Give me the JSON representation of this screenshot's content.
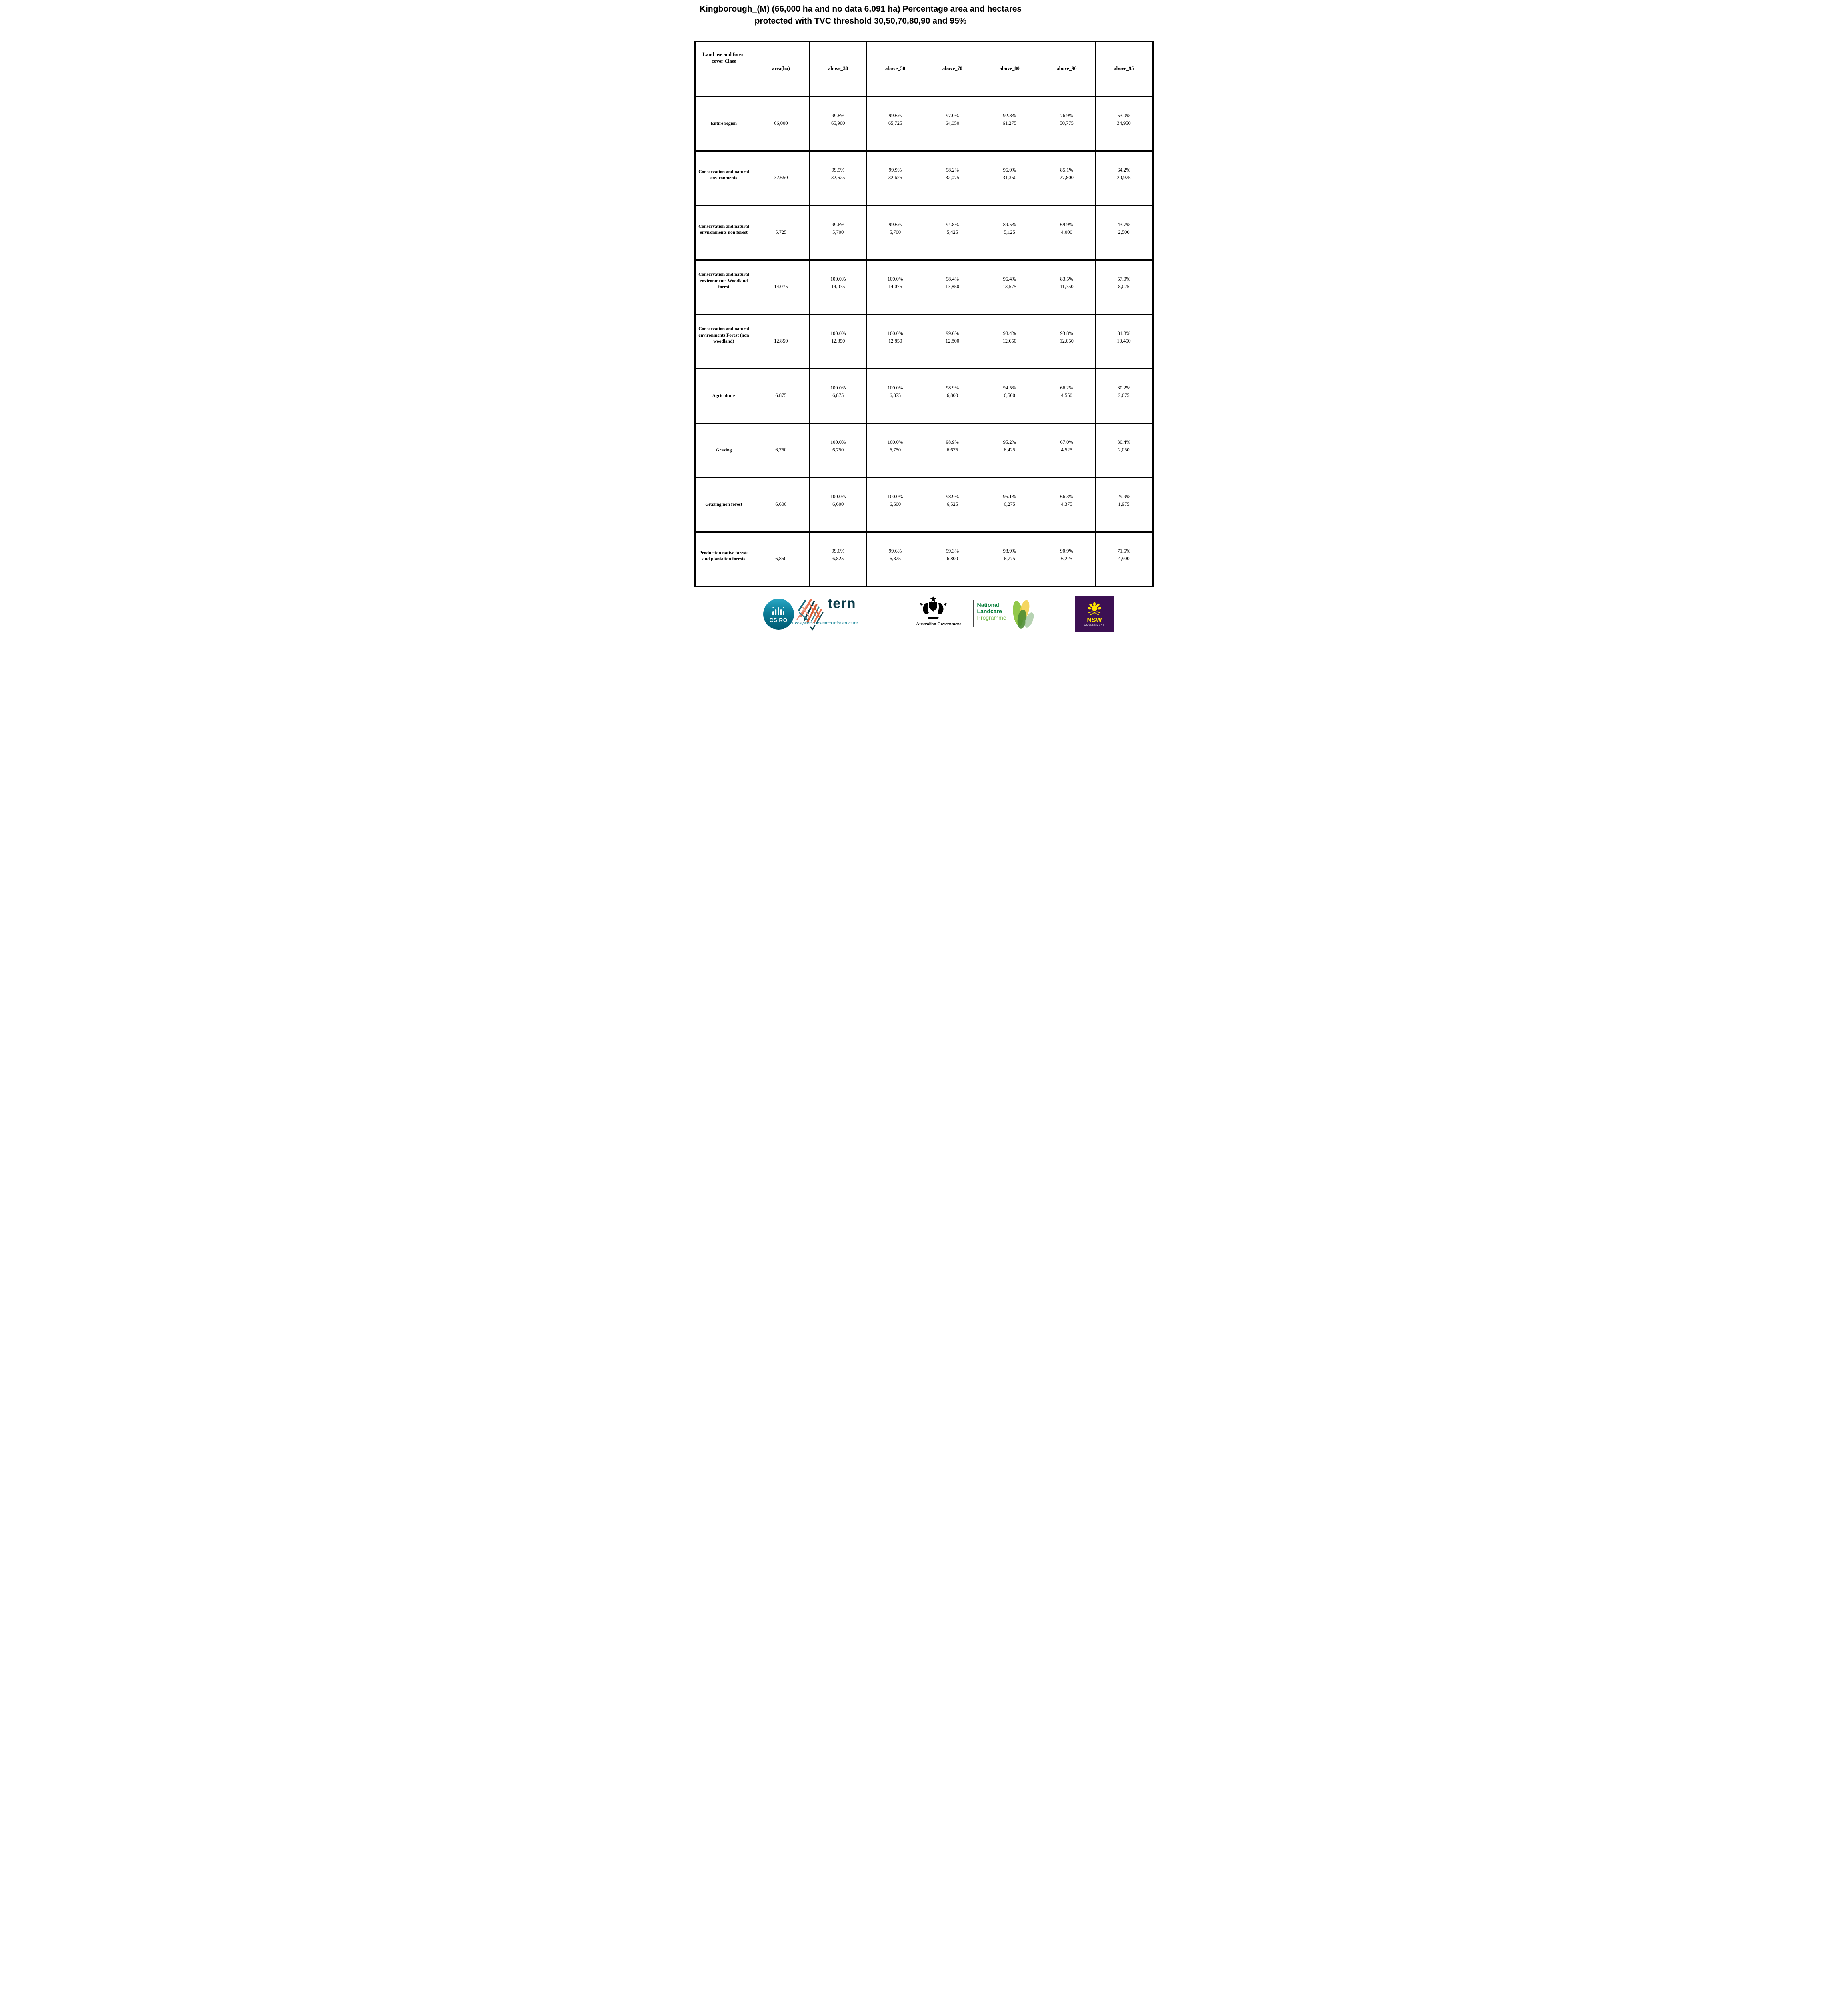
{
  "title": "Kingborough_(M) (66,000 ha and no data 6,091 ha) Percentage area and hectares protected with TVC threshold 30,50,70,80,90 and 95%",
  "table": {
    "columns": [
      "Land use and forest cover Class",
      "area(ha)",
      "above_30",
      "above_50",
      "above_70",
      "above_80",
      "above_90",
      "above_95"
    ],
    "rows": [
      {
        "class": "Entire region",
        "area": "66,000",
        "cells": [
          {
            "pct": "99.8%",
            "ha": "65,900"
          },
          {
            "pct": "99.6%",
            "ha": "65,725"
          },
          {
            "pct": "97.0%",
            "ha": "64,050"
          },
          {
            "pct": "92.8%",
            "ha": "61,275"
          },
          {
            "pct": "76.9%",
            "ha": "50,775"
          },
          {
            "pct": "53.0%",
            "ha": "34,950"
          }
        ]
      },
      {
        "class": "Conservation and natural environments",
        "area": "32,650",
        "cells": [
          {
            "pct": "99.9%",
            "ha": "32,625"
          },
          {
            "pct": "99.9%",
            "ha": "32,625"
          },
          {
            "pct": "98.2%",
            "ha": "32,075"
          },
          {
            "pct": "96.0%",
            "ha": "31,350"
          },
          {
            "pct": "85.1%",
            "ha": "27,800"
          },
          {
            "pct": "64.2%",
            "ha": "20,975"
          }
        ]
      },
      {
        "class": "Conservation and natural environments non forest",
        "area": "5,725",
        "cells": [
          {
            "pct": "99.6%",
            "ha": "5,700"
          },
          {
            "pct": "99.6%",
            "ha": "5,700"
          },
          {
            "pct": "94.8%",
            "ha": "5,425"
          },
          {
            "pct": "89.5%",
            "ha": "5,125"
          },
          {
            "pct": "69.9%",
            "ha": "4,000"
          },
          {
            "pct": "43.7%",
            "ha": "2,500"
          }
        ]
      },
      {
        "class": "Conservation and natural environments Woodland forest",
        "area": "14,075",
        "cells": [
          {
            "pct": "100.0%",
            "ha": "14,075"
          },
          {
            "pct": "100.0%",
            "ha": "14,075"
          },
          {
            "pct": "98.4%",
            "ha": "13,850"
          },
          {
            "pct": "96.4%",
            "ha": "13,575"
          },
          {
            "pct": "83.5%",
            "ha": "11,750"
          },
          {
            "pct": "57.0%",
            "ha": "8,025"
          }
        ]
      },
      {
        "class": "Conservation and natural environments Forest (non woodland)",
        "area": "12,850",
        "cells": [
          {
            "pct": "100.0%",
            "ha": "12,850"
          },
          {
            "pct": "100.0%",
            "ha": "12,850"
          },
          {
            "pct": "99.6%",
            "ha": "12,800"
          },
          {
            "pct": "98.4%",
            "ha": "12,650"
          },
          {
            "pct": "93.8%",
            "ha": "12,050"
          },
          {
            "pct": "81.3%",
            "ha": "10,450"
          }
        ]
      },
      {
        "class": "Agriculture",
        "area": "6,875",
        "cells": [
          {
            "pct": "100.0%",
            "ha": "6,875"
          },
          {
            "pct": "100.0%",
            "ha": "6,875"
          },
          {
            "pct": "98.9%",
            "ha": "6,800"
          },
          {
            "pct": "94.5%",
            "ha": "6,500"
          },
          {
            "pct": "66.2%",
            "ha": "4,550"
          },
          {
            "pct": "30.2%",
            "ha": "2,075"
          }
        ]
      },
      {
        "class": "Grazing",
        "area": "6,750",
        "cells": [
          {
            "pct": "100.0%",
            "ha": "6,750"
          },
          {
            "pct": "100.0%",
            "ha": "6,750"
          },
          {
            "pct": "98.9%",
            "ha": "6,675"
          },
          {
            "pct": "95.2%",
            "ha": "6,425"
          },
          {
            "pct": "67.0%",
            "ha": "4,525"
          },
          {
            "pct": "30.4%",
            "ha": "2,050"
          }
        ]
      },
      {
        "class": "Grazing non forest",
        "area": "6,600",
        "cells": [
          {
            "pct": "100.0%",
            "ha": "6,600"
          },
          {
            "pct": "100.0%",
            "ha": "6,600"
          },
          {
            "pct": "98.9%",
            "ha": "6,525"
          },
          {
            "pct": "95.1%",
            "ha": "6,275"
          },
          {
            "pct": "66.3%",
            "ha": "4,375"
          },
          {
            "pct": "29.9%",
            "ha": "1,975"
          }
        ]
      },
      {
        "class": "Production native forests and plantation forests",
        "area": "6,850",
        "cells": [
          {
            "pct": "99.6%",
            "ha": "6,825"
          },
          {
            "pct": "99.6%",
            "ha": "6,825"
          },
          {
            "pct": "99.3%",
            "ha": "6,800"
          },
          {
            "pct": "98.9%",
            "ha": "6,775"
          },
          {
            "pct": "90.9%",
            "ha": "6,225"
          },
          {
            "pct": "71.5%",
            "ha": "4,900"
          }
        ]
      }
    ]
  },
  "footer": {
    "csiro_label": "CSIRO",
    "tern_label": "tern",
    "tern_subtitle": "Ecosystem Research Infrastructure",
    "ausgov_label": "Australian Government",
    "landcare_line1": "National",
    "landcare_line2": "Landcare",
    "landcare_line3": "Programme",
    "nsw_label": "NSW",
    "nsw_sublabel": "GOVERNMENT"
  },
  "colors": {
    "border": "#000000",
    "csiro_teal_top": "#2AA7C4",
    "csiro_teal_bottom": "#005B72",
    "tern_dark_teal": "#0D3D4B",
    "tern_teal": "#0F7F93",
    "landcare_green": "#007A33",
    "landcare_light_green": "#6FB643",
    "nsw_purple": "#3C1053",
    "nsw_yellow": "#FFE600"
  }
}
